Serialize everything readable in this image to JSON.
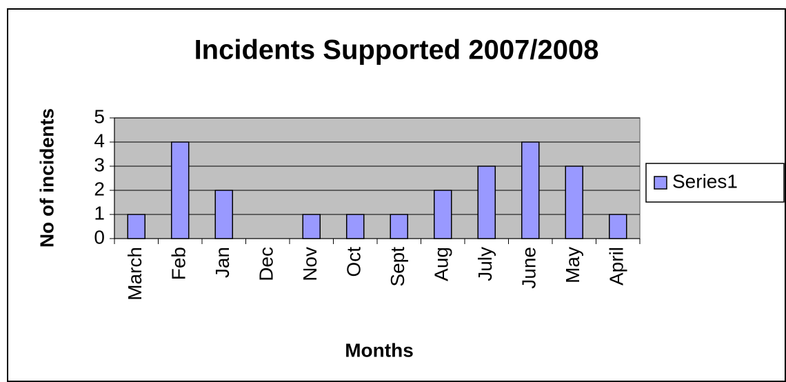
{
  "chart_data": {
    "type": "bar",
    "title": "Incidents Supported 2007/2008",
    "x_label": "Months",
    "y_label": "No of incidents",
    "categories": [
      "March",
      "Feb",
      "Jan",
      "Dec",
      "Nov",
      "Oct",
      "Sept",
      "Aug",
      "July",
      "June",
      "May",
      "April"
    ],
    "series": [
      {
        "name": "Series1",
        "color": "#9999ff",
        "values": [
          1,
          4,
          2,
          0,
          1,
          1,
          1,
          2,
          3,
          4,
          3,
          1
        ]
      }
    ],
    "ylim": [
      0,
      5
    ],
    "yticks": [
      0,
      1,
      2,
      3,
      4,
      5
    ],
    "grid": true,
    "legend": "right"
  }
}
